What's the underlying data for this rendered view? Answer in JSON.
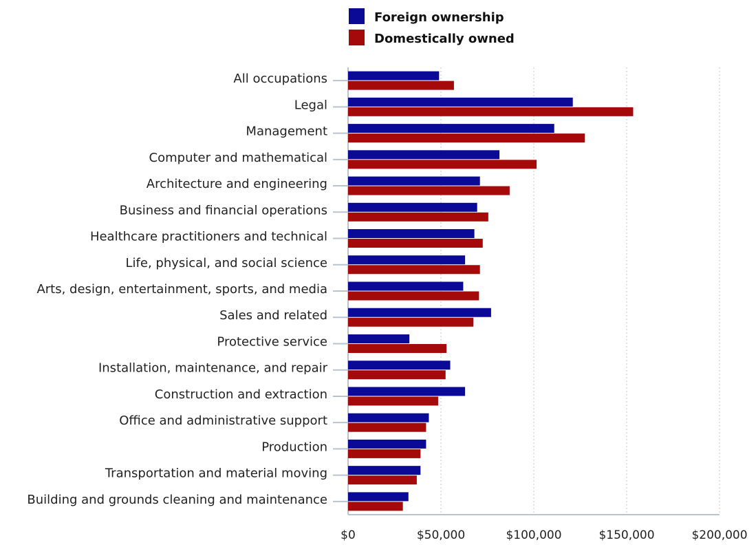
{
  "chart_data": {
    "type": "bar",
    "orientation": "horizontal",
    "title": "",
    "xlabel": "",
    "ylabel": "",
    "xlim": [
      0,
      200000
    ],
    "x_ticks": [
      0,
      50000,
      100000,
      150000,
      200000
    ],
    "x_tick_labels": [
      "$0",
      "$50,000",
      "$100,000",
      "$150,000",
      "$200,000"
    ],
    "grid": "vertical dotted",
    "legend_position": "top-left",
    "categories": [
      "All occupations",
      "Legal",
      "Management",
      "Computer and mathematical",
      "Architecture and engineering",
      "Business and financial operations",
      "Healthcare practitioners and technical",
      "Life, physical, and social science",
      "Arts, design, entertainment, sports, and media",
      "Sales and related",
      "Protective service",
      "Installation, maintenance, and repair",
      "Construction and extraction",
      "Office and administrative support",
      "Production",
      "Transportation and material moving",
      "Building and grounds cleaning and maintenance"
    ],
    "series": [
      {
        "name": "Foreign ownership",
        "color": "#0a0a96",
        "values": [
          49000,
          121000,
          111000,
          81500,
          71000,
          69500,
          68000,
          63000,
          62000,
          77000,
          33000,
          55000,
          63000,
          43500,
          42000,
          39000,
          32500
        ]
      },
      {
        "name": "Domestically owned",
        "color": "#a50a0a",
        "values": [
          57000,
          153500,
          127500,
          101500,
          87000,
          75500,
          72500,
          71000,
          70500,
          67500,
          53000,
          52500,
          48500,
          42000,
          39000,
          37000,
          29500
        ]
      }
    ]
  }
}
